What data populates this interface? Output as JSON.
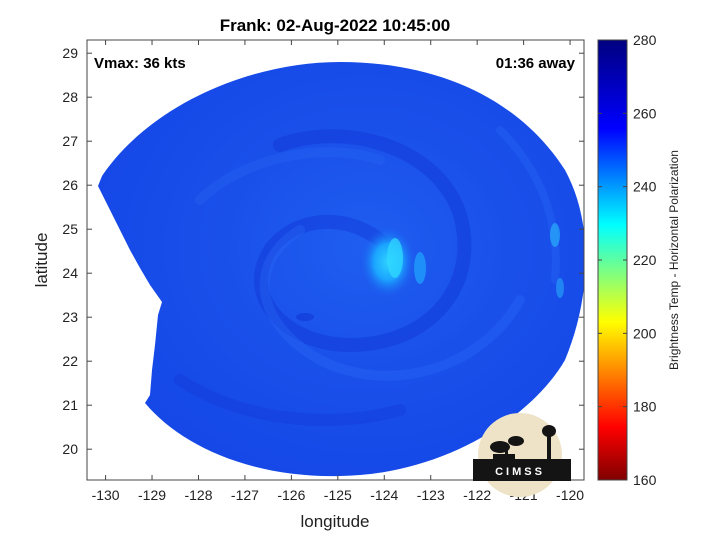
{
  "title": "Frank: 02-Aug-2022 10:45:00",
  "annotations": {
    "vmax": "Vmax: 36 kts",
    "time_away": "01:36 away"
  },
  "logo": {
    "text": "CIMSS"
  },
  "chart_data": {
    "type": "heatmap",
    "title": "Frank: 02-Aug-2022 10:45:00",
    "xlabel": "longitude",
    "ylabel": "latitude",
    "xlim": [
      -130.4,
      -119.7
    ],
    "ylim": [
      19.3,
      29.3
    ],
    "x_ticks": [
      -130,
      -129,
      -128,
      -127,
      -126,
      -125,
      -124,
      -123,
      -122,
      -121,
      -120
    ],
    "y_ticks": [
      20,
      21,
      22,
      23,
      24,
      25,
      26,
      27,
      28,
      29
    ],
    "grid": false,
    "storm_center": {
      "lon": -124.5,
      "lat": 24.5
    },
    "colorbar": {
      "label": "Brightness Temp - Horizontal Polarization",
      "range": [
        160,
        280
      ],
      "ticks": [
        160,
        180,
        200,
        220,
        240,
        260,
        280
      ],
      "colors": [
        "#7f0000",
        "#ff0000",
        "#ffff00",
        "#00ffff",
        "#0000ff",
        "#00007f"
      ]
    },
    "field_summary": {
      "background_value": 262,
      "min_value_near_center": 240
    }
  }
}
